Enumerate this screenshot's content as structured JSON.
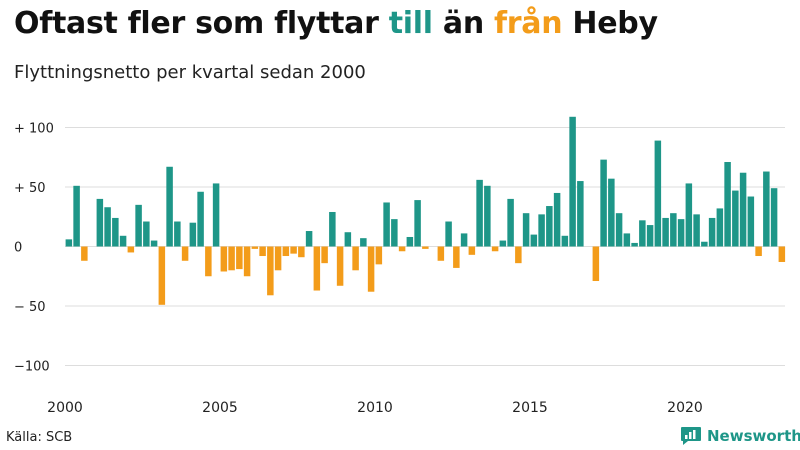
{
  "title": {
    "part1": "Oftast fler som flyttar ",
    "pos_word": "till",
    "mid": " än ",
    "neg_word": "från",
    "end": " Heby"
  },
  "subtitle": "Flyttningsnetto per kvartal sedan 2000",
  "source": "Källa: SCB",
  "brand": "Newsworthy",
  "colors": {
    "positive": "#1e9688",
    "negative": "#f39c1a",
    "grid": "#dddddd"
  },
  "chart_data": {
    "type": "bar",
    "title": "Oftast fler som flyttar till än från Heby",
    "subtitle": "Flyttningsnetto per kvartal sedan 2000",
    "xlabel": "",
    "ylabel": "",
    "ylim": [
      -110,
      110
    ],
    "yticks": [
      100,
      50,
      0,
      -50,
      -100
    ],
    "ytick_labels": [
      "+ 100",
      "+  50",
      "0",
      "− 50",
      "−100"
    ],
    "xticks": [
      "2000",
      "2005",
      "2010",
      "2015",
      "2020"
    ],
    "grid": true,
    "start_year": 2000,
    "values": [
      6,
      51,
      -12,
      0,
      40,
      33,
      24,
      9,
      -5,
      35,
      21,
      5,
      -49,
      67,
      21,
      -12,
      20,
      46,
      -25,
      53,
      -21,
      -20,
      -19,
      -25,
      -2,
      -8,
      -41,
      -20,
      -8,
      -6,
      -9,
      13,
      -37,
      -14,
      29,
      -33,
      12,
      -20,
      7,
      -38,
      -15,
      37,
      23,
      -4,
      8,
      39,
      -2,
      0,
      -12,
      21,
      -18,
      11,
      -7,
      56,
      51,
      -4,
      5,
      40,
      -14,
      28,
      10,
      27,
      34,
      45,
      9,
      109,
      55,
      0,
      -29,
      73,
      57,
      28,
      11,
      3,
      22,
      18,
      89,
      24,
      28,
      23,
      53,
      27,
      4,
      24,
      32,
      71,
      47,
      62,
      42,
      -8,
      63,
      49,
      -13
    ]
  }
}
